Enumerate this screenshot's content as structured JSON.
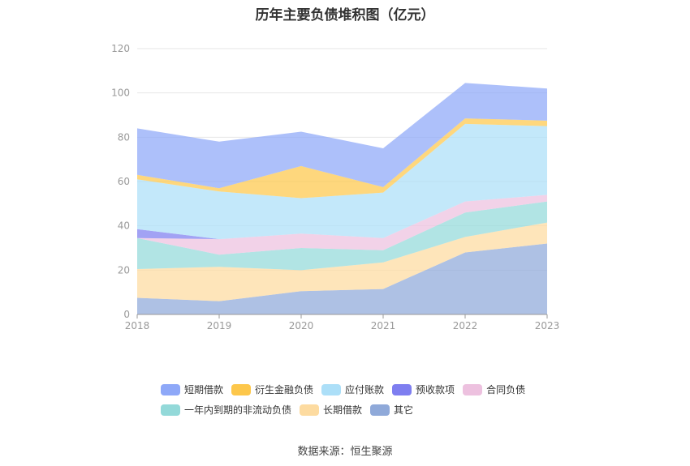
{
  "chart_data": {
    "type": "area",
    "stacked": true,
    "title": "历年主要负债堆积图（亿元）",
    "x": [
      "2018",
      "2019",
      "2020",
      "2021",
      "2022",
      "2023"
    ],
    "ylim": [
      0,
      120
    ],
    "yticks": [
      0,
      20,
      40,
      60,
      80,
      100,
      120
    ],
    "grid": true,
    "legend_position": "bottom",
    "series": [
      {
        "name": "其它",
        "color": "#8fa9d9",
        "values": [
          7.5,
          6,
          10.5,
          11.5,
          28,
          32
        ]
      },
      {
        "name": "长期借款",
        "color": "#fddba0",
        "values": [
          13,
          15.5,
          9.5,
          12,
          7,
          9.5
        ]
      },
      {
        "name": "一年内到期的非流动负债",
        "color": "#93d9d9",
        "values": [
          14,
          5.5,
          10,
          5.5,
          11,
          9.5
        ]
      },
      {
        "name": "合同负债",
        "color": "#edc1df",
        "values": [
          0,
          7,
          6.5,
          5.5,
          5,
          3
        ]
      },
      {
        "name": "预收款项",
        "color": "#7e7ef0",
        "values": [
          4,
          0,
          0,
          0,
          0,
          0
        ]
      },
      {
        "name": "应付账款",
        "color": "#acdff8",
        "values": [
          22.5,
          21.5,
          16,
          20.5,
          35,
          31
        ]
      },
      {
        "name": "衍生金融负债",
        "color": "#fdc74b",
        "values": [
          2,
          1.5,
          14.5,
          2.5,
          2.5,
          2.5
        ]
      },
      {
        "name": "短期借款",
        "color": "#8ea8f8",
        "values": [
          21,
          21,
          15.5,
          17.5,
          16,
          14.5
        ]
      }
    ]
  },
  "legend_order": [
    "短期借款",
    "衍生金融负债",
    "应付账款",
    "预收款项",
    "合同负债",
    "一年内到期的非流动负债",
    "长期借款",
    "其它"
  ],
  "source": "数据来源：恒生聚源"
}
